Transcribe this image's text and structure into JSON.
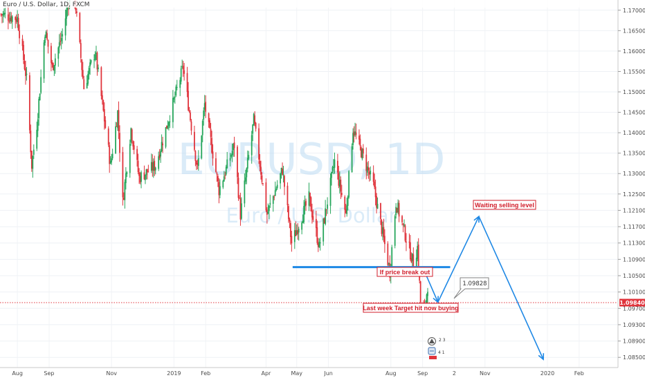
{
  "chart_data": {
    "type": "candlestick",
    "title": "Euro / U.S. Dollar, 1D, FXCM",
    "watermark": {
      "symbol": "EURUSD, 1D",
      "name": "Euro / U.S. Dollar"
    },
    "colors": {
      "up": "#26a65b",
      "down": "#e0343c",
      "arrow": "#1e88e5",
      "support": "#1e88e5",
      "current_price": "#e0343c"
    },
    "y_axis": {
      "side": "right",
      "range": [
        1.0825,
        1.1725
      ],
      "ticks": [
        "1.17000",
        "1.16500",
        "1.16000",
        "1.15500",
        "1.15000",
        "1.14500",
        "1.14000",
        "1.13500",
        "1.13000",
        "1.12500",
        "1.12100",
        "1.11700",
        "1.11300",
        "1.10900",
        "1.10500",
        "1.10100",
        "1.09700",
        "1.09300",
        "1.08900",
        "1.08500"
      ]
    },
    "x_axis": {
      "range": [
        "2018-07-15",
        "2020-03-10"
      ],
      "ticks": [
        {
          "label": "Aug",
          "date": "2018-08-01"
        },
        {
          "label": "Sep",
          "date": "2018-09-01"
        },
        {
          "label": "Nov",
          "date": "2018-11-01"
        },
        {
          "label": "2019",
          "date": "2019-01-01"
        },
        {
          "label": "Feb",
          "date": "2019-02-01"
        },
        {
          "label": "Apr",
          "date": "2019-04-01"
        },
        {
          "label": "May",
          "date": "2019-05-01"
        },
        {
          "label": "Jun",
          "date": "2019-06-01"
        },
        {
          "label": "Aug",
          "date": "2019-08-01"
        },
        {
          "label": "Sep",
          "date": "2019-09-01"
        },
        {
          "label": "2",
          "date": "2019-10-02"
        },
        {
          "label": "Nov",
          "date": "2019-11-01"
        },
        {
          "label": "2020",
          "date": "2020-01-01"
        },
        {
          "label": "Feb",
          "date": "2020-02-01"
        }
      ]
    },
    "price_path": [
      [
        "2018-07-16",
        1.169
      ],
      [
        "2018-08-01",
        1.168
      ],
      [
        "2018-08-10",
        1.153
      ],
      [
        "2018-08-15",
        1.132
      ],
      [
        "2018-08-20",
        1.142
      ],
      [
        "2018-08-28",
        1.165
      ],
      [
        "2018-09-04",
        1.156
      ],
      [
        "2018-09-14",
        1.164
      ],
      [
        "2018-09-24",
        1.178
      ],
      [
        "2018-10-05",
        1.151
      ],
      [
        "2018-10-16",
        1.16
      ],
      [
        "2018-10-31",
        1.132
      ],
      [
        "2018-11-07",
        1.145
      ],
      [
        "2018-11-12",
        1.123
      ],
      [
        "2018-11-20",
        1.141
      ],
      [
        "2018-11-28",
        1.129
      ],
      [
        "2018-12-14",
        1.132
      ],
      [
        "2018-12-31",
        1.147
      ],
      [
        "2019-01-10",
        1.156
      ],
      [
        "2019-01-24",
        1.131
      ],
      [
        "2019-01-31",
        1.147
      ],
      [
        "2019-02-14",
        1.126
      ],
      [
        "2019-03-01",
        1.137
      ],
      [
        "2019-03-07",
        1.12
      ],
      [
        "2019-03-20",
        1.143
      ],
      [
        "2019-04-02",
        1.12
      ],
      [
        "2019-04-17",
        1.131
      ],
      [
        "2019-04-26",
        1.113
      ],
      [
        "2019-05-13",
        1.124
      ],
      [
        "2019-05-23",
        1.112
      ],
      [
        "2019-06-07",
        1.133
      ],
      [
        "2019-06-18",
        1.12
      ],
      [
        "2019-06-25",
        1.141
      ],
      [
        "2019-07-15",
        1.127
      ],
      [
        "2019-07-31",
        1.106
      ],
      [
        "2019-08-06",
        1.123
      ],
      [
        "2019-08-23",
        1.108
      ],
      [
        "2019-08-27",
        1.112
      ],
      [
        "2019-08-30",
        1.0985
      ],
      [
        "2019-09-03",
        1.0966
      ],
      [
        "2019-09-06",
        1.1027
      ]
    ],
    "support_line": {
      "price": 1.1071,
      "from": "2019-04-27",
      "to": "2019-09-28"
    },
    "current_price": {
      "value": 1.0984,
      "label": "1.09840"
    },
    "projection": [
      {
        "date": "2019-09-03",
        "price": 1.106
      },
      {
        "date": "2019-09-16",
        "price": 1.0985
      },
      {
        "date": "2019-10-26",
        "price": 1.1195
      },
      {
        "date": "2019-12-28",
        "price": 1.0845
      }
    ],
    "annotations": {
      "breakout": "If price break out",
      "target_hit": "Last week Target hit now buying",
      "selling": "Waiting selling level",
      "price_callout": "1.09828"
    }
  }
}
